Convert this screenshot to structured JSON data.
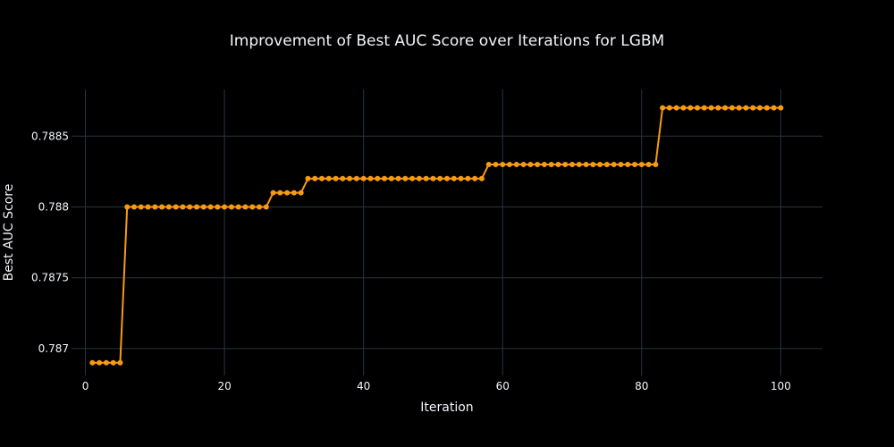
{
  "chart_data": {
    "type": "line",
    "title": "Improvement of Best AUC Score over Iterations for LGBM",
    "xlabel": "Iteration",
    "ylabel": "Best AUC Score",
    "xlim": [
      -2,
      106
    ],
    "ylim": [
      0.78681,
      0.78883
    ],
    "xticks": [
      0,
      20,
      40,
      60,
      80,
      100
    ],
    "yticks": [
      0.787,
      0.7875,
      0.788,
      0.7885
    ],
    "ytick_labels": [
      "0.787",
      "0.7875",
      "0.788",
      "0.7885"
    ],
    "grid": true,
    "series": [
      {
        "color": "#f89a12",
        "segments": [
          {
            "x_from": 1,
            "x_to": 5,
            "y": 0.7869
          },
          {
            "x_from": 6,
            "x_to": 26,
            "y": 0.788
          },
          {
            "x_from": 27,
            "x_to": 31,
            "y": 0.7881
          },
          {
            "x_from": 32,
            "x_to": 57,
            "y": 0.7882
          },
          {
            "x_from": 58,
            "x_to": 82,
            "y": 0.7883
          },
          {
            "x_from": 83,
            "x_to": 100,
            "y": 0.7887
          }
        ]
      }
    ]
  },
  "colors": {
    "background": "#000000",
    "grid": "#283442",
    "text": "#f2f5fa",
    "line": "#f89a12"
  }
}
